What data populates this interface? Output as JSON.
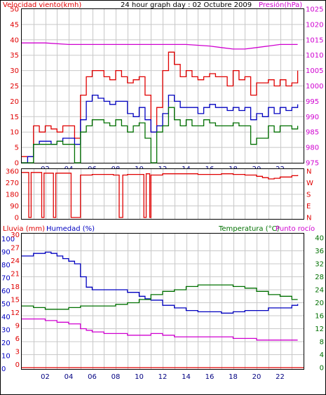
{
  "chart_data": [
    {
      "type": "line",
      "title": "24 hour graph day : 02 Octubre 2009",
      "left_axis_label": "Velocidad viento(kmh)",
      "right_axis_label": "Presión(hPa)",
      "x_ticks": [
        "02",
        "04",
        "06",
        "08",
        "10",
        "12",
        "14",
        "16",
        "18",
        "20",
        "22"
      ],
      "x_range_hours": [
        0,
        24
      ],
      "ylim_left": [
        0,
        50
      ],
      "ylim_right": [
        975,
        1025
      ],
      "y_ticks_left": [
        "0",
        "5",
        "10",
        "15",
        "20",
        "25",
        "30",
        "35",
        "40",
        "45",
        "50"
      ],
      "y_ticks_right": [
        "975",
        "980",
        "985",
        "990",
        "995",
        "1000",
        "1005",
        "1010",
        "1015",
        "1020",
        "1025"
      ],
      "series": [
        {
          "key": "gust",
          "color": "#e00000",
          "axis": "left",
          "x": [
            0,
            0.5,
            1,
            1.5,
            2,
            2.5,
            3,
            3.5,
            4,
            4.5,
            5,
            5.5,
            6,
            6.5,
            7,
            7.5,
            8,
            8.5,
            9,
            9.5,
            10,
            10.5,
            11,
            11.5,
            12,
            12.5,
            13,
            13.5,
            14,
            14.5,
            15,
            15.5,
            16,
            16.5,
            17,
            17.5,
            18,
            18.5,
            19,
            19.5,
            20,
            20.5,
            21,
            21.5,
            22,
            22.5,
            23,
            23.5
          ],
          "values": [
            2,
            2,
            12,
            10,
            12,
            11,
            10,
            12,
            12,
            8,
            22,
            28,
            30,
            30,
            28,
            27,
            30,
            28,
            26,
            27,
            28,
            22,
            10,
            18,
            30,
            36,
            32,
            28,
            30,
            28,
            27,
            28,
            29,
            28,
            28,
            25,
            30,
            27,
            28,
            22,
            26,
            26,
            27,
            25,
            27,
            25,
            26,
            30
          ]
        },
        {
          "key": "wind_avg",
          "color": "#0000c0",
          "axis": "left",
          "x": [
            0,
            0.5,
            1,
            1.5,
            2,
            2.5,
            3,
            3.5,
            4,
            4.5,
            5,
            5.5,
            6,
            6.5,
            7,
            7.5,
            8,
            8.5,
            9,
            9.5,
            10,
            10.5,
            11,
            11.5,
            12,
            12.5,
            13,
            13.5,
            14,
            14.5,
            15,
            15.5,
            16,
            16.5,
            17,
            17.5,
            18,
            18.5,
            19,
            19.5,
            20,
            20.5,
            21,
            21.5,
            22,
            22.5,
            23,
            23.5
          ],
          "values": [
            0,
            2,
            6,
            7,
            7,
            6,
            7,
            8,
            8,
            6,
            14,
            20,
            22,
            21,
            20,
            19,
            20,
            20,
            16,
            15,
            18,
            14,
            10,
            12,
            16,
            22,
            20,
            18,
            18,
            18,
            16,
            18,
            19,
            18,
            18,
            17,
            18,
            17,
            18,
            14,
            16,
            15,
            18,
            16,
            18,
            17,
            18,
            19
          ]
        },
        {
          "key": "wind_min",
          "color": "#007000",
          "axis": "left",
          "x": [
            0,
            0.5,
            1,
            1.5,
            2,
            2.5,
            3,
            3.5,
            4,
            4.5,
            5,
            5.5,
            6,
            6.5,
            7,
            7.5,
            8,
            8.5,
            9,
            9.5,
            10,
            10.5,
            11,
            11.5,
            12,
            12.5,
            13,
            13.5,
            14,
            14.5,
            15,
            15.5,
            16,
            16.5,
            17,
            17.5,
            18,
            18.5,
            19,
            19.5,
            20,
            20.5,
            21,
            21.5,
            22,
            22.5,
            23,
            23.5
          ],
          "values": [
            0,
            0,
            6,
            6,
            6,
            6,
            7,
            6,
            6,
            0,
            10,
            12,
            14,
            14,
            13,
            12,
            14,
            12,
            10,
            12,
            13,
            8,
            0,
            10,
            12,
            18,
            14,
            12,
            14,
            12,
            12,
            14,
            13,
            12,
            12,
            12,
            13,
            12,
            12,
            6,
            8,
            8,
            12,
            10,
            12,
            12,
            11,
            12
          ]
        },
        {
          "key": "pressure",
          "color": "#d000d0",
          "axis": "right",
          "x": [
            0,
            2,
            4,
            6,
            8,
            10,
            12,
            14,
            16,
            17,
            18,
            19,
            20,
            21,
            22,
            23,
            23.5
          ],
          "values": [
            1014,
            1014,
            1013.5,
            1013.5,
            1013.5,
            1013.5,
            1013.5,
            1013.5,
            1013,
            1012.5,
            1012,
            1012,
            1012.5,
            1013,
            1013.5,
            1013.5,
            1013.5
          ]
        }
      ]
    },
    {
      "type": "line",
      "title": "",
      "left_axis_label": "",
      "right_axis_label": "",
      "x_range_hours": [
        0,
        24
      ],
      "ylim": [
        0,
        360
      ],
      "y_ticks_left": [
        "0",
        "90",
        "180",
        "270",
        "360"
      ],
      "y_ticks_right": [
        "N",
        "E",
        "S",
        "W",
        "N"
      ],
      "series": [
        {
          "key": "wind_dir",
          "color": "#e00000",
          "axis": "left",
          "x": [
            0,
            0.4,
            0.6,
            0.8,
            1.5,
            1.7,
            1.9,
            2.5,
            2.7,
            2.9,
            4.0,
            4.2,
            4.5,
            5,
            5.5,
            6,
            7,
            7.8,
            8,
            8.3,
            8.6,
            9,
            10,
            10.4,
            10.6,
            10.9,
            11,
            12,
            13,
            14,
            15,
            16,
            17,
            18,
            19,
            20,
            20.5,
            21,
            21.5,
            22,
            23,
            23.5
          ],
          "values": [
            350,
            350,
            0,
            350,
            350,
            0,
            345,
            345,
            0,
            345,
            345,
            0,
            0,
            330,
            330,
            335,
            335,
            330,
            330,
            0,
            330,
            335,
            335,
            0,
            340,
            0,
            330,
            340,
            340,
            340,
            335,
            335,
            340,
            335,
            330,
            320,
            310,
            300,
            305,
            315,
            325,
            330
          ]
        }
      ]
    },
    {
      "type": "line",
      "title": "",
      "left_axis_label": "Lluvia (mm)",
      "left_axis_label2": "Humedad (%)",
      "right_axis_label": "Temperatura (°C)",
      "right_axis_label2": "Punto rocío",
      "x_range_hours": [
        0,
        24
      ],
      "ylim_humidity": [
        0,
        100
      ],
      "ylim_rain": [
        0,
        30
      ],
      "ylim_temp": [
        0,
        40
      ],
      "y_ticks_humidity": [
        "0",
        "10",
        "20",
        "30",
        "40",
        "50",
        "60",
        "70",
        "80",
        "90",
        "100"
      ],
      "y_ticks_rain": [
        "0",
        "3",
        "6",
        "9",
        "12",
        "15",
        "18",
        "21",
        "24",
        "27",
        "30"
      ],
      "y_ticks_temp": [
        "0",
        "4",
        "8",
        "12",
        "16",
        "20",
        "24",
        "28",
        "32",
        "36",
        "40"
      ],
      "series": [
        {
          "key": "humidity",
          "color": "#0000c0",
          "axis": "humidity",
          "x": [
            0,
            1,
            2,
            2.5,
            3,
            3.5,
            4,
            4.5,
            5,
            5.5,
            6,
            7,
            8,
            9,
            10,
            10.5,
            11,
            12,
            13,
            14,
            15,
            16,
            17,
            18,
            19,
            20,
            21,
            22,
            23,
            23.5
          ],
          "values": [
            86,
            88,
            89,
            88,
            86,
            84,
            82,
            80,
            70,
            62,
            60,
            60,
            60,
            58,
            55,
            53,
            52,
            48,
            46,
            44,
            43,
            43,
            42,
            43,
            44,
            44,
            46,
            46,
            48,
            49
          ]
        },
        {
          "key": "temperature",
          "color": "#007000",
          "axis": "temp",
          "x": [
            0,
            1,
            2,
            3,
            4,
            5,
            6,
            7,
            8,
            9,
            10,
            11,
            12,
            13,
            14,
            15,
            16,
            17,
            18,
            19,
            20,
            21,
            22,
            23,
            23.5
          ],
          "values": [
            19,
            18.5,
            18,
            18,
            18.5,
            19,
            19,
            19,
            19.5,
            20,
            21,
            22.5,
            23.5,
            24,
            25,
            25.5,
            25.5,
            25.5,
            25,
            24.5,
            23.5,
            22.5,
            22,
            21,
            21
          ]
        },
        {
          "key": "dew_point",
          "color": "#d000d0",
          "axis": "temp",
          "x": [
            0,
            1,
            2,
            3,
            4,
            5,
            5.5,
            6,
            7,
            8,
            9,
            10,
            11,
            12,
            13,
            14,
            15,
            16,
            17,
            18,
            19,
            20,
            21,
            22,
            23,
            23.5
          ],
          "values": [
            15,
            15,
            14.5,
            14,
            13.5,
            12,
            11.5,
            11,
            10.5,
            10.5,
            10,
            10,
            10.5,
            10,
            9.5,
            9.5,
            9.5,
            9.5,
            9.5,
            9,
            9,
            8.5,
            8.5,
            8.5,
            8.5,
            8.5
          ]
        },
        {
          "key": "rain",
          "color": "#e00000",
          "axis": "rain",
          "x": [
            0,
            24
          ],
          "values": [
            0,
            0
          ]
        }
      ]
    }
  ],
  "colors": {
    "red": "#e00000",
    "blue": "#0000c0",
    "green": "#007000",
    "magenta": "#d000d0",
    "grid": "#c8c8c8"
  }
}
